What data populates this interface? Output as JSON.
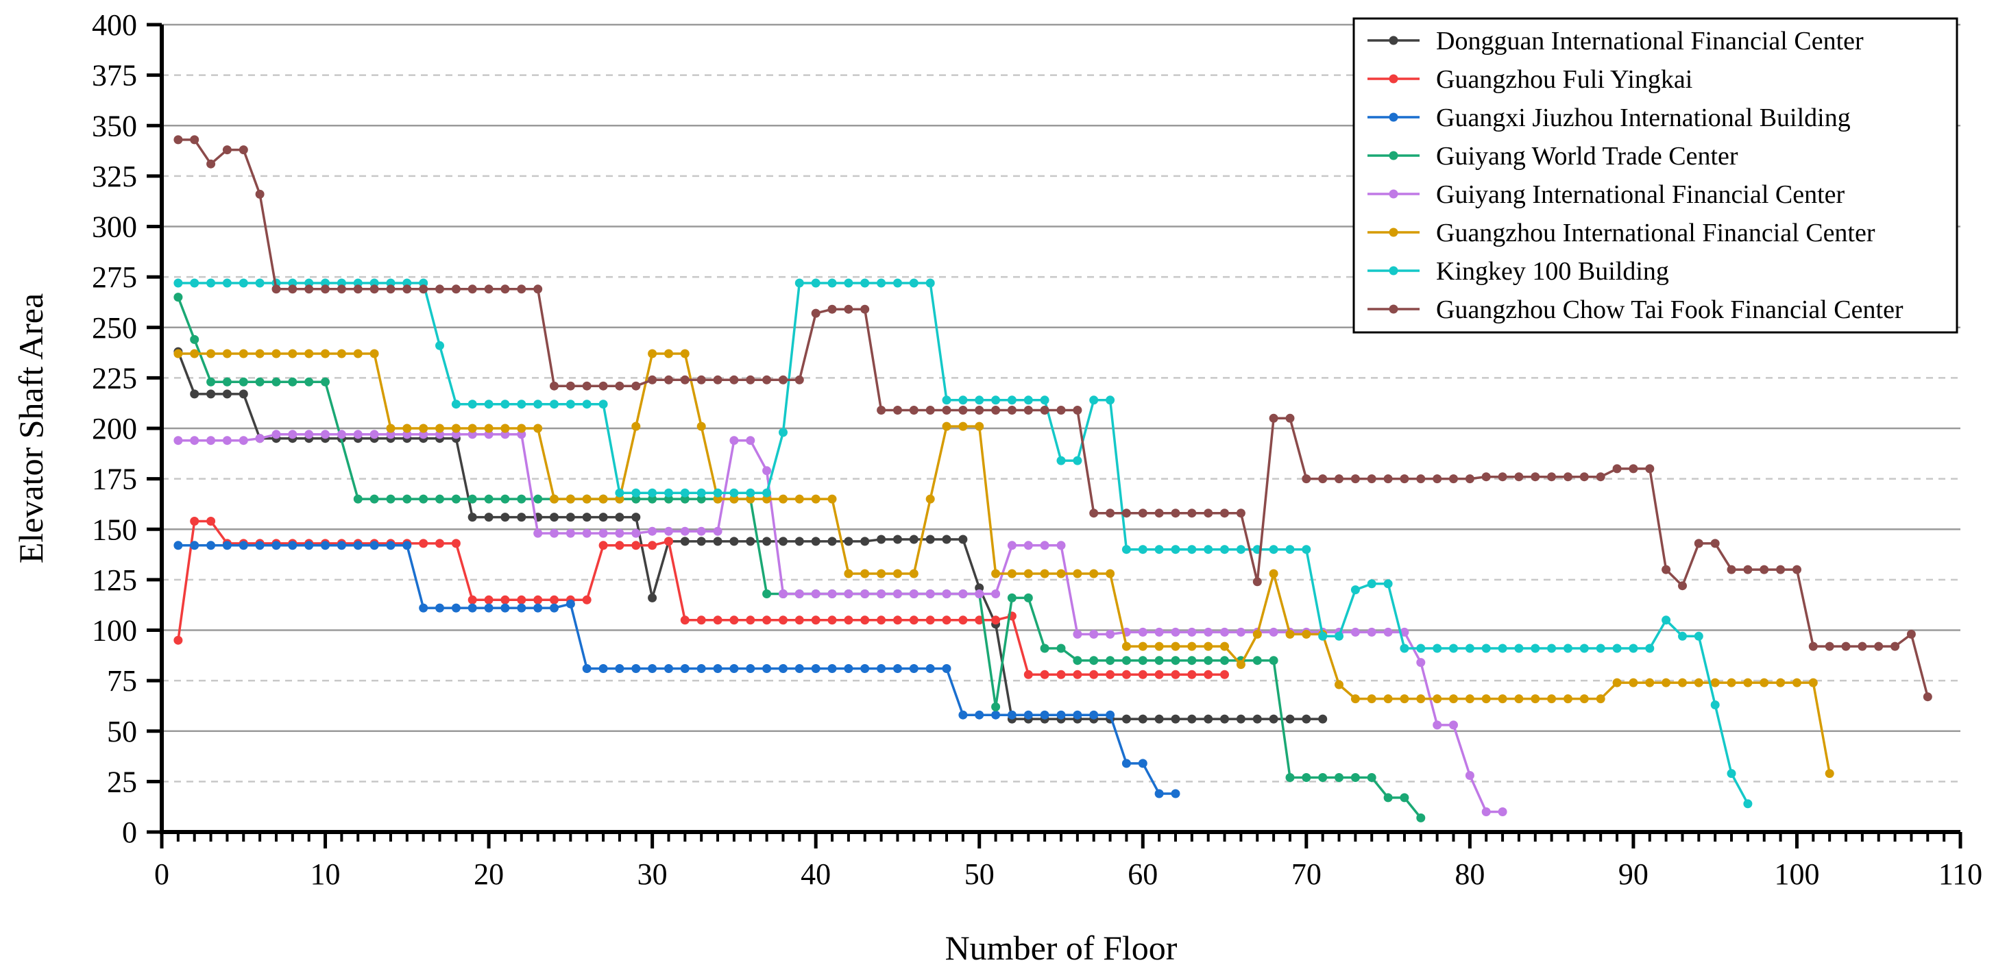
{
  "chart_data": {
    "type": "line",
    "title": "",
    "xlabel": "Number of Floor",
    "ylabel": "Elevator Shaft Area",
    "xlim": [
      0,
      110
    ],
    "ylim": [
      0,
      400
    ],
    "xticks": [
      0,
      10,
      20,
      30,
      40,
      50,
      60,
      70,
      80,
      90,
      100,
      110
    ],
    "yticks": [
      0,
      25,
      50,
      75,
      100,
      125,
      150,
      175,
      200,
      225,
      250,
      275,
      300,
      325,
      350,
      375,
      400
    ],
    "grid": "horizontal, solid at multiples of 50, dashed at odd multiples of 25",
    "legend_position": "top-right",
    "series": [
      {
        "name": "Dongguan International Financial Center",
        "color": "#404040",
        "segments": [
          [
            1,
            238,
            1
          ],
          [
            2,
            217,
            4
          ],
          [
            6,
            195,
            13
          ],
          [
            19,
            156,
            11
          ],
          [
            30,
            116,
            1
          ],
          [
            31,
            144,
            13
          ],
          [
            44,
            145,
            6
          ],
          [
            50,
            121,
            1
          ],
          [
            51,
            103,
            1
          ],
          [
            52,
            56,
            20
          ]
        ]
      },
      {
        "name": "Guangzhou Fuli Yingkai",
        "color": "#f23c3c",
        "segments": [
          [
            1,
            95,
            1
          ],
          [
            2,
            154,
            2
          ],
          [
            4,
            143,
            14
          ],
          [
            18,
            143,
            1
          ],
          [
            19,
            115,
            8
          ],
          [
            27,
            142,
            4
          ],
          [
            31,
            144,
            1
          ],
          [
            32,
            105,
            20
          ],
          [
            52,
            107,
            1
          ],
          [
            53,
            78,
            13
          ]
        ]
      },
      {
        "name": "Guangxi Jiuzhou International Building",
        "color": "#1a6fcf",
        "segments": [
          [
            1,
            142,
            15
          ],
          [
            16,
            111,
            9
          ],
          [
            25,
            113,
            1
          ],
          [
            26,
            81,
            23
          ],
          [
            49,
            58,
            10
          ],
          [
            59,
            34,
            2
          ],
          [
            61,
            19,
            2
          ]
        ]
      },
      {
        "name": "Guiyang World Trade Center",
        "color": "#1aa874",
        "segments": [
          [
            1,
            265,
            1
          ],
          [
            2,
            244,
            1
          ],
          [
            3,
            223,
            8
          ],
          [
            12,
            165,
            25
          ],
          [
            37,
            118,
            14
          ],
          [
            51,
            62,
            1
          ],
          [
            52,
            116,
            2
          ],
          [
            54,
            91,
            2
          ],
          [
            56,
            85,
            13
          ],
          [
            69,
            27,
            6
          ],
          [
            75,
            17,
            2
          ],
          [
            77,
            7,
            1
          ]
        ]
      },
      {
        "name": "Guiyang International Financial Center",
        "color": "#c079e6",
        "segments": [
          [
            1,
            194,
            5
          ],
          [
            6,
            195,
            1
          ],
          [
            7,
            197,
            16
          ],
          [
            23,
            148,
            7
          ],
          [
            30,
            149,
            5
          ],
          [
            35,
            194,
            2
          ],
          [
            37,
            179,
            1
          ],
          [
            38,
            118,
            14
          ],
          [
            52,
            142,
            4
          ],
          [
            56,
            98,
            3
          ],
          [
            59,
            99,
            18
          ],
          [
            77,
            84,
            1
          ],
          [
            78,
            53,
            2
          ],
          [
            80,
            28,
            1
          ],
          [
            81,
            10,
            2
          ]
        ]
      },
      {
        "name": "Guangzhou International Financial Center",
        "color": "#d69b00",
        "segments": [
          [
            1,
            237,
            13
          ],
          [
            14,
            200,
            10
          ],
          [
            24,
            165,
            5
          ],
          [
            29,
            201,
            1
          ],
          [
            30,
            237,
            3
          ],
          [
            33,
            201,
            1
          ],
          [
            34,
            165,
            8
          ],
          [
            42,
            128,
            5
          ],
          [
            47,
            165,
            1
          ],
          [
            48,
            201,
            3
          ],
          [
            51,
            128,
            8
          ],
          [
            59,
            92,
            7
          ],
          [
            66,
            83,
            1
          ],
          [
            67,
            98,
            1
          ],
          [
            68,
            128,
            1
          ],
          [
            69,
            98,
            3
          ],
          [
            72,
            73,
            1
          ],
          [
            73,
            66,
            16
          ],
          [
            89,
            74,
            13
          ],
          [
            102,
            29,
            1
          ]
        ]
      },
      {
        "name": "Kingkey 100 Building",
        "color": "#14c8c8",
        "segments": [
          [
            1,
            272,
            16
          ],
          [
            17,
            241,
            1
          ],
          [
            18,
            212,
            10
          ],
          [
            28,
            168,
            9
          ],
          [
            37,
            168,
            1
          ],
          [
            38,
            198,
            1
          ],
          [
            39,
            272,
            9
          ],
          [
            48,
            214,
            7
          ],
          [
            55,
            184,
            2
          ],
          [
            57,
            214,
            2
          ],
          [
            59,
            140,
            12
          ],
          [
            71,
            97,
            2
          ],
          [
            73,
            120,
            1
          ],
          [
            74,
            123,
            2
          ],
          [
            76,
            91,
            16
          ],
          [
            92,
            105,
            1
          ],
          [
            93,
            97,
            2
          ],
          [
            95,
            63,
            1
          ],
          [
            96,
            29,
            1
          ],
          [
            97,
            14,
            1
          ]
        ]
      },
      {
        "name": "Guangzhou Chow Tai Fook Financial Center",
        "color": "#8b4a4a",
        "segments": [
          [
            1,
            343,
            2
          ],
          [
            3,
            331,
            1
          ],
          [
            4,
            338,
            2
          ],
          [
            6,
            316,
            1
          ],
          [
            7,
            269,
            17
          ],
          [
            24,
            221,
            6
          ],
          [
            30,
            224,
            10
          ],
          [
            40,
            257,
            1
          ],
          [
            41,
            259,
            3
          ],
          [
            44,
            209,
            13
          ],
          [
            57,
            158,
            10
          ],
          [
            67,
            124,
            1
          ],
          [
            68,
            205,
            2
          ],
          [
            70,
            175,
            11
          ],
          [
            81,
            176,
            8
          ],
          [
            89,
            180,
            3
          ],
          [
            92,
            130,
            1
          ],
          [
            93,
            122,
            1
          ],
          [
            94,
            143,
            2
          ],
          [
            96,
            130,
            5
          ],
          [
            101,
            92,
            6
          ],
          [
            107,
            98,
            1
          ],
          [
            108,
            67,
            1
          ]
        ]
      }
    ]
  }
}
